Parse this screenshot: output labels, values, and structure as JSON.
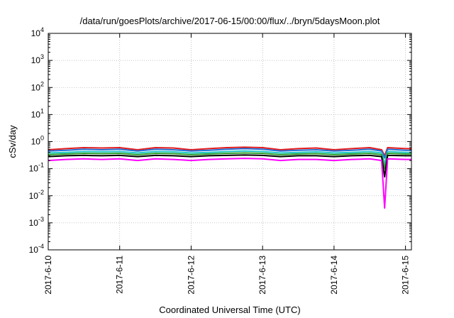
{
  "chart_data": {
    "type": "line",
    "title": "/data/run/goesPlots/archive/2017-06-15/00:00/flux/../bryn/5daysMoon.plot",
    "xlabel": "Coordinated Universal Time (UTC)",
    "ylabel": "cSv/day",
    "x_ticks": [
      "2017-6-10",
      "2017-6-11",
      "2017-6-12",
      "2017-6-13",
      "2017-6-14",
      "2017-6-15"
    ],
    "xlim": [
      "2017-06-10",
      "2017-06-15 02:00"
    ],
    "y_scale": "log",
    "y_tick_labels": [
      {
        "base": "10",
        "exp": "-4"
      },
      {
        "base": "10",
        "exp": "-3"
      },
      {
        "base": "10",
        "exp": "-2"
      },
      {
        "base": "10",
        "exp": "-1"
      },
      {
        "base": "10",
        "exp": "0"
      },
      {
        "base": "10",
        "exp": "1"
      },
      {
        "base": "10",
        "exp": "2"
      },
      {
        "base": "10",
        "exp": "3"
      },
      {
        "base": "10",
        "exp": "4"
      }
    ],
    "ylim": [
      0.0001,
      10000
    ],
    "grid": true,
    "x": [
      "2017-06-10 00:00",
      "2017-06-10 06:00",
      "2017-06-10 12:00",
      "2017-06-10 18:00",
      "2017-06-11 00:00",
      "2017-06-11 06:00",
      "2017-06-11 12:00",
      "2017-06-11 18:00",
      "2017-06-12 00:00",
      "2017-06-12 06:00",
      "2017-06-12 12:00",
      "2017-06-12 18:00",
      "2017-06-13 00:00",
      "2017-06-13 06:00",
      "2017-06-13 12:00",
      "2017-06-13 18:00",
      "2017-06-14 00:00",
      "2017-06-14 06:00",
      "2017-06-14 12:00",
      "2017-06-14 16:00",
      "2017-06-14 17:00",
      "2017-06-14 18:00",
      "2017-06-15 00:00",
      "2017-06-15 02:00"
    ],
    "series": [
      {
        "color": "#e41a1c",
        "values": [
          0.5,
          0.55,
          0.6,
          0.58,
          0.6,
          0.5,
          0.6,
          0.58,
          0.5,
          0.55,
          0.6,
          0.62,
          0.6,
          0.5,
          0.55,
          0.58,
          0.5,
          0.55,
          0.6,
          0.5,
          0.3,
          0.6,
          0.55,
          0.55
        ]
      },
      {
        "color": "#1f6fd6",
        "values": [
          0.45,
          0.48,
          0.52,
          0.5,
          0.52,
          0.45,
          0.52,
          0.5,
          0.45,
          0.48,
          0.52,
          0.55,
          0.52,
          0.45,
          0.48,
          0.5,
          0.45,
          0.48,
          0.52,
          0.45,
          0.25,
          0.52,
          0.48,
          0.48
        ]
      },
      {
        "color": "#20c8c8",
        "values": [
          0.38,
          0.4,
          0.43,
          0.42,
          0.43,
          0.38,
          0.43,
          0.42,
          0.38,
          0.4,
          0.43,
          0.45,
          0.43,
          0.38,
          0.4,
          0.42,
          0.38,
          0.4,
          0.43,
          0.38,
          0.15,
          0.43,
          0.4,
          0.4
        ]
      },
      {
        "color": "#2ca02c",
        "values": [
          0.33,
          0.35,
          0.37,
          0.36,
          0.37,
          0.33,
          0.37,
          0.36,
          0.33,
          0.35,
          0.37,
          0.38,
          0.37,
          0.33,
          0.35,
          0.36,
          0.33,
          0.35,
          0.37,
          0.33,
          0.1,
          0.37,
          0.35,
          0.35
        ]
      },
      {
        "color": "#000000",
        "values": [
          0.28,
          0.3,
          0.31,
          0.3,
          0.31,
          0.28,
          0.31,
          0.3,
          0.28,
          0.3,
          0.31,
          0.32,
          0.31,
          0.28,
          0.3,
          0.3,
          0.28,
          0.3,
          0.31,
          0.28,
          0.05,
          0.31,
          0.3,
          0.3
        ]
      },
      {
        "color": "#ff00ff",
        "values": [
          0.2,
          0.22,
          0.23,
          0.22,
          0.23,
          0.2,
          0.23,
          0.22,
          0.2,
          0.22,
          0.23,
          0.24,
          0.23,
          0.2,
          0.22,
          0.22,
          0.2,
          0.22,
          0.23,
          0.2,
          0.0035,
          0.23,
          0.22,
          0.22
        ]
      }
    ]
  }
}
